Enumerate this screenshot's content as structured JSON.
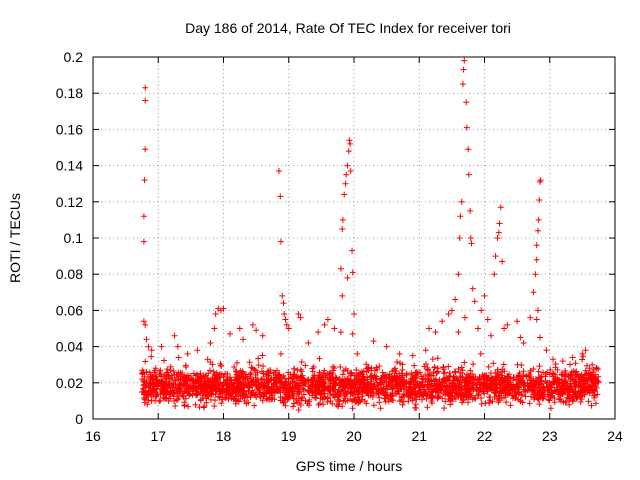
{
  "chart_data": {
    "type": "scatter",
    "title": "Day 186 of 2014, Rate Of TEC Index for receiver tori",
    "xlabel": "GPS time / hours",
    "ylabel": "ROTI / TECUs",
    "xlim": [
      16,
      24
    ],
    "ylim": [
      0,
      0.2
    ],
    "xticks": [
      "16",
      "17",
      "18",
      "19",
      "20",
      "21",
      "22",
      "23",
      "24"
    ],
    "yticks": [
      "0",
      "0.02",
      "0.04",
      "0.06",
      "0.08",
      "0.1",
      "0.12",
      "0.14",
      "0.16",
      "0.18",
      "0.2"
    ],
    "grid": true,
    "marker": "+",
    "color": "#ff0000",
    "x_range_of_data": [
      16.75,
      23.75
    ],
    "series": [
      {
        "name": "ROTI",
        "points": [
          [
            16.8,
            0.183
          ],
          [
            16.8,
            0.176
          ],
          [
            16.8,
            0.149
          ],
          [
            16.79,
            0.132
          ],
          [
            16.78,
            0.112
          ],
          [
            16.78,
            0.098
          ],
          [
            16.78,
            0.054
          ],
          [
            16.8,
            0.052
          ],
          [
            16.82,
            0.044
          ],
          [
            16.85,
            0.04
          ],
          [
            16.9,
            0.038
          ],
          [
            17.05,
            0.04
          ],
          [
            17.25,
            0.046
          ],
          [
            17.3,
            0.04
          ],
          [
            17.45,
            0.036
          ],
          [
            17.6,
            0.038
          ],
          [
            17.8,
            0.042
          ],
          [
            17.88,
            0.058
          ],
          [
            17.92,
            0.061
          ],
          [
            17.96,
            0.06
          ],
          [
            18.0,
            0.061
          ],
          [
            17.86,
            0.05
          ],
          [
            18.1,
            0.047
          ],
          [
            18.25,
            0.05
          ],
          [
            18.3,
            0.044
          ],
          [
            18.45,
            0.052
          ],
          [
            18.5,
            0.049
          ],
          [
            18.6,
            0.046
          ],
          [
            18.85,
            0.137
          ],
          [
            18.87,
            0.123
          ],
          [
            18.88,
            0.098
          ],
          [
            18.9,
            0.068
          ],
          [
            18.92,
            0.064
          ],
          [
            18.93,
            0.058
          ],
          [
            18.95,
            0.055
          ],
          [
            18.97,
            0.052
          ],
          [
            19.0,
            0.05
          ],
          [
            18.88,
            0.036
          ],
          [
            19.15,
            0.058
          ],
          [
            19.18,
            0.056
          ],
          [
            19.3,
            0.042
          ],
          [
            19.45,
            0.048
          ],
          [
            19.55,
            0.052
          ],
          [
            19.6,
            0.055
          ],
          [
            19.7,
            0.05
          ],
          [
            19.8,
            0.048
          ],
          [
            19.82,
            0.068
          ],
          [
            19.8,
            0.083
          ],
          [
            19.82,
            0.105
          ],
          [
            19.83,
            0.11
          ],
          [
            19.85,
            0.124
          ],
          [
            19.87,
            0.13
          ],
          [
            19.88,
            0.135
          ],
          [
            19.9,
            0.14
          ],
          [
            19.92,
            0.148
          ],
          [
            19.93,
            0.154
          ],
          [
            19.94,
            0.152
          ],
          [
            19.95,
            0.137
          ],
          [
            19.97,
            0.093
          ],
          [
            19.98,
            0.081
          ],
          [
            19.9,
            0.078
          ],
          [
            20.0,
            0.058
          ],
          [
            19.98,
            0.047
          ],
          [
            20.05,
            0.036
          ],
          [
            20.3,
            0.043
          ],
          [
            20.5,
            0.04
          ],
          [
            20.7,
            0.036
          ],
          [
            20.9,
            0.035
          ],
          [
            21.1,
            0.038
          ],
          [
            21.15,
            0.05
          ],
          [
            21.25,
            0.048
          ],
          [
            21.35,
            0.054
          ],
          [
            21.45,
            0.058
          ],
          [
            21.5,
            0.06
          ],
          [
            21.55,
            0.066
          ],
          [
            21.6,
            0.08
          ],
          [
            21.62,
            0.1
          ],
          [
            21.63,
            0.112
          ],
          [
            21.65,
            0.12
          ],
          [
            21.67,
            0.185
          ],
          [
            21.68,
            0.193
          ],
          [
            21.69,
            0.198
          ],
          [
            21.72,
            0.175
          ],
          [
            21.73,
            0.161
          ],
          [
            21.75,
            0.149
          ],
          [
            21.76,
            0.135
          ],
          [
            21.78,
            0.115
          ],
          [
            21.79,
            0.1
          ],
          [
            21.8,
            0.097
          ],
          [
            21.82,
            0.072
          ],
          [
            21.85,
            0.065
          ],
          [
            21.7,
            0.056
          ],
          [
            21.6,
            0.048
          ],
          [
            21.9,
            0.05
          ],
          [
            21.95,
            0.06
          ],
          [
            22.0,
            0.068
          ],
          [
            22.05,
            0.055
          ],
          [
            22.1,
            0.046
          ],
          [
            22.15,
            0.08
          ],
          [
            22.17,
            0.09
          ],
          [
            22.2,
            0.1
          ],
          [
            22.22,
            0.103
          ],
          [
            22.23,
            0.108
          ],
          [
            22.25,
            0.117
          ],
          [
            22.27,
            0.087
          ],
          [
            22.3,
            0.05
          ],
          [
            22.35,
            0.052
          ],
          [
            22.5,
            0.054
          ],
          [
            22.55,
            0.045
          ],
          [
            22.6,
            0.042
          ],
          [
            22.7,
            0.056
          ],
          [
            22.75,
            0.07
          ],
          [
            22.78,
            0.08
          ],
          [
            22.8,
            0.088
          ],
          [
            22.8,
            0.096
          ],
          [
            22.82,
            0.104
          ],
          [
            22.83,
            0.11
          ],
          [
            22.84,
            0.121
          ],
          [
            22.85,
            0.131
          ],
          [
            22.86,
            0.132
          ],
          [
            22.82,
            0.06
          ],
          [
            22.8,
            0.055
          ],
          [
            22.85,
            0.045
          ],
          [
            22.95,
            0.038
          ],
          [
            23.05,
            0.033
          ],
          [
            23.2,
            0.032
          ],
          [
            23.35,
            0.034
          ],
          [
            23.5,
            0.036
          ],
          [
            23.55,
            0.038
          ],
          [
            23.65,
            0.03
          ],
          [
            23.72,
            0.028
          ]
        ],
        "background_band": {
          "description": "dense cluster of points between 16.8 and 23.75 hours",
          "y_min": 0.004,
          "y_max": 0.032,
          "typical_value": 0.016
        }
      }
    ]
  }
}
